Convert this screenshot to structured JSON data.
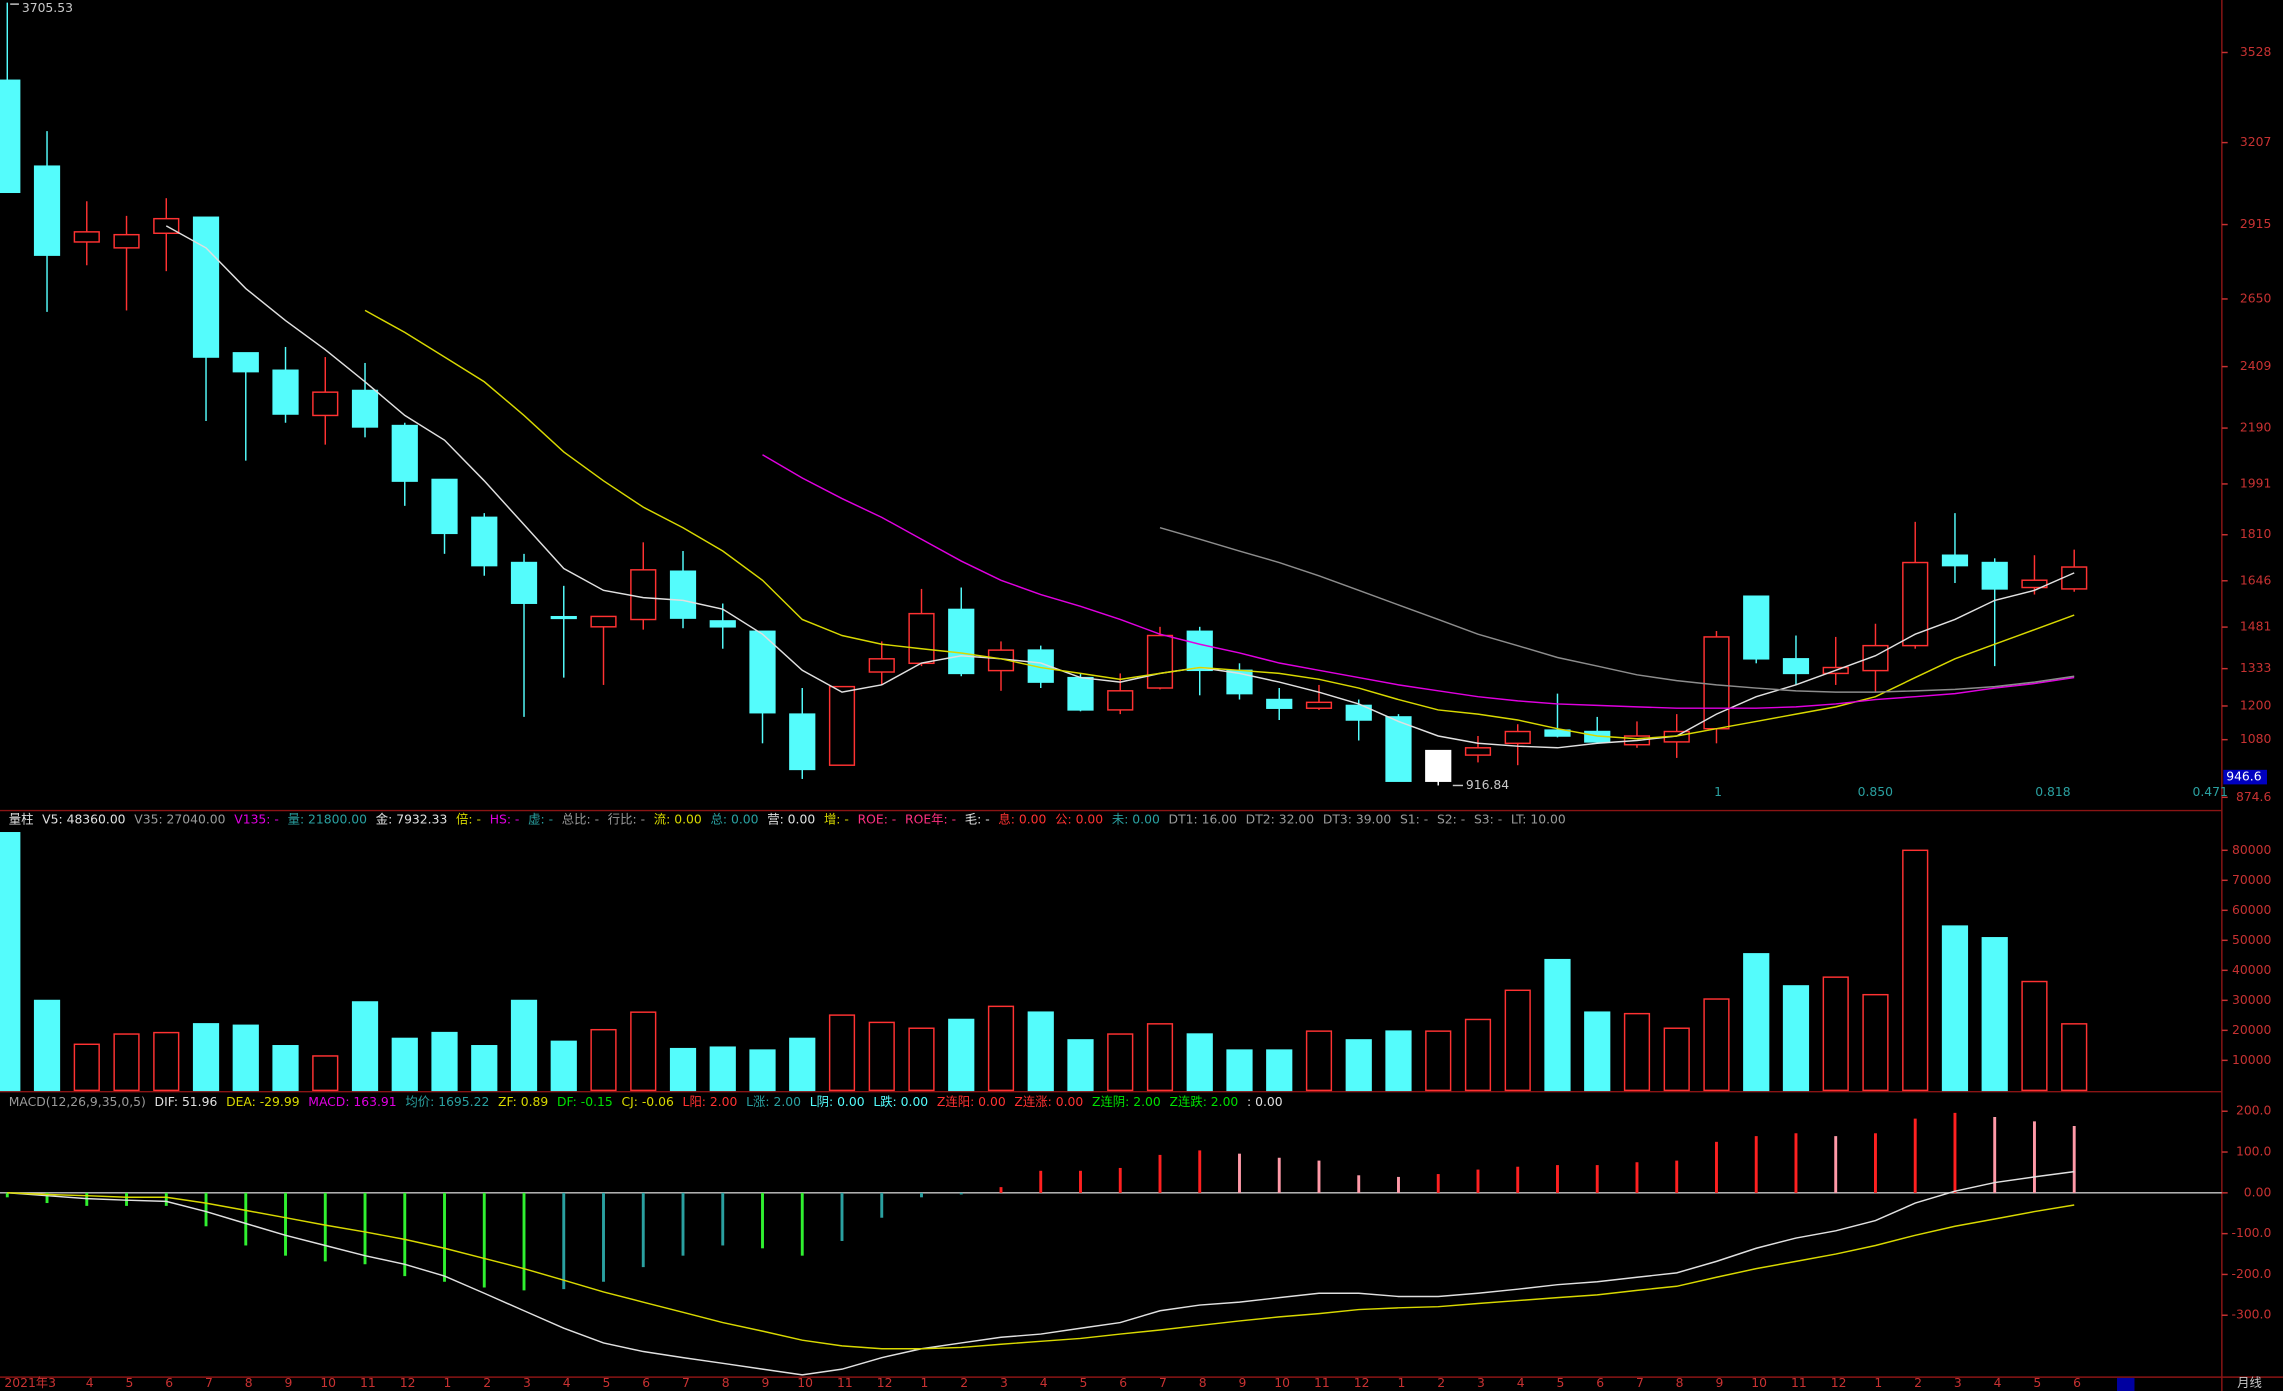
{
  "chart_data": [
    {
      "type": "candlestick",
      "categories": [
        null,
        "2021年3",
        "4",
        "5",
        "6",
        "7",
        "8",
        "9",
        "10",
        "11",
        "12",
        "1",
        "2",
        "3",
        "4",
        "5",
        "6",
        "7",
        "8",
        "9",
        "10",
        "11",
        "12",
        "1",
        "2",
        "3",
        "4",
        "5",
        "6",
        "7",
        "8",
        "9",
        "10",
        "11",
        "12",
        "1",
        "2",
        "3",
        "4",
        "5",
        "6",
        "7",
        "8",
        "9",
        "10",
        "11",
        "12",
        "1",
        "2",
        "3",
        "4",
        "5",
        "6"
      ],
      "open": [
        3429,
        3123,
        2853,
        2832,
        2884,
        2941,
        2458,
        2396,
        2235,
        2324,
        2199,
        2007,
        1872,
        1711,
        1518,
        1482,
        1508,
        1680,
        1503,
        1466,
        1171,
        989,
        1321,
        1352,
        1544,
        1326,
        1399,
        1301,
        1186,
        1264,
        1466,
        1327,
        1223,
        1192,
        1202,
        1161,
        932,
        1025,
        1067,
        1114,
        1109,
        1062,
        1072,
        1119,
        1591,
        1368,
        1316,
        1326,
        1415,
        1737,
        1711,
        1622,
        1617
      ],
      "high": [
        3705.53,
        3248,
        2998,
        2946,
        3009,
        2941,
        2458,
        2479,
        2443,
        2422,
        2209,
        2007,
        1887,
        1742,
        1628,
        1519,
        1783,
        1752,
        1565,
        1466,
        1264,
        1269,
        1430,
        1617,
        1622,
        1430,
        1415,
        1316,
        1316,
        1482,
        1482,
        1352,
        1264,
        1275,
        1223,
        1171,
        1041,
        1093,
        1135,
        1244,
        1161,
        1145,
        1171,
        1467,
        1591,
        1451,
        1446,
        1493,
        1856,
        1887,
        1726,
        1737,
        1757
      ],
      "low": [
        3030,
        2604,
        2770,
        2609,
        2749,
        2215,
        2074,
        2209,
        2131,
        2157,
        1913,
        1742,
        1664,
        1161,
        1301,
        1275,
        1472,
        1477,
        1404,
        1067,
        940,
        989,
        1275,
        1342,
        1306,
        1254,
        1264,
        1181,
        1171,
        1259,
        1238,
        1223,
        1150,
        1186,
        1077,
        932,
        916.84,
        999,
        989,
        1088,
        1067,
        1051,
        1015,
        1067,
        1352,
        1275,
        1275,
        1249,
        1404,
        1638,
        1342,
        1597,
        1607
      ],
      "close": [
        3030,
        2806,
        2889,
        2879,
        2936,
        2443,
        2391,
        2240,
        2318,
        2194,
        2001,
        1815,
        1700,
        1566,
        1512,
        1519,
        1685,
        1513,
        1482,
        1176,
        974,
        1269,
        1368,
        1529,
        1316,
        1399,
        1285,
        1186,
        1254,
        1451,
        1327,
        1244,
        1192,
        1213,
        1150,
        932,
        1041,
        1051,
        1109,
        1093,
        1072,
        1093,
        1109,
        1446,
        1368,
        1316,
        1337,
        1415,
        1711,
        1700,
        1617,
        1648,
        1695
      ],
      "up_color": "#ff3232",
      "down_color": "#54fcfc",
      "highlight_index": 36,
      "highlight_color": "#ffffff",
      "lines": [
        {
          "color": "#e0e0e0",
          "values": [
            null,
            null,
            null,
            null,
            2910,
            2832,
            2687,
            2573,
            2469,
            2355,
            2235,
            2147,
            2002,
            1846,
            1690,
            1612,
            1586,
            1576,
            1545,
            1456,
            1327,
            1249,
            1275,
            1353,
            1379,
            1368,
            1353,
            1301,
            1285,
            1316,
            1337,
            1316,
            1285,
            1249,
            1207,
            1145,
            1093,
            1067,
            1057,
            1051,
            1067,
            1077,
            1093,
            1171,
            1233,
            1275,
            1327,
            1379,
            1456,
            1508,
            1576,
            1612,
            1674
          ]
        },
        {
          "color": "#d8d800",
          "values": [
            null,
            null,
            null,
            null,
            null,
            null,
            null,
            null,
            null,
            2609,
            2531,
            2443,
            2355,
            2235,
            2105,
            2002,
            1908,
            1835,
            1752,
            1648,
            1508,
            1451,
            1420,
            1404,
            1389,
            1368,
            1337,
            1316,
            1295,
            1316,
            1337,
            1327,
            1316,
            1295,
            1264,
            1223,
            1186,
            1171,
            1150,
            1119,
            1093,
            1083,
            1093,
            1119,
            1145,
            1171,
            1197,
            1233,
            1301,
            1368,
            1420,
            1472,
            1524
          ]
        },
        {
          "color": "#e000e0",
          "values": [
            null,
            null,
            null,
            null,
            null,
            null,
            null,
            null,
            null,
            null,
            null,
            null,
            null,
            null,
            null,
            null,
            null,
            null,
            null,
            2095,
            2012,
            1939,
            1872,
            1794,
            1716,
            1648,
            1597,
            1555,
            1508,
            1456,
            1420,
            1389,
            1353,
            1327,
            1301,
            1275,
            1254,
            1233,
            1218,
            1207,
            1202,
            1197,
            1192,
            1192,
            1192,
            1197,
            1207,
            1223,
            1233,
            1244,
            1264,
            1280,
            1301
          ]
        },
        {
          "color": "#8c8c8c",
          "values": [
            null,
            null,
            null,
            null,
            null,
            null,
            null,
            null,
            null,
            null,
            null,
            null,
            null,
            null,
            null,
            null,
            null,
            null,
            null,
            null,
            null,
            null,
            null,
            null,
            null,
            null,
            null,
            null,
            null,
            1835,
            1794,
            1752,
            1711,
            1664,
            1612,
            1560,
            1508,
            1456,
            1415,
            1373,
            1342,
            1311,
            1290,
            1275,
            1264,
            1254,
            1249,
            1249,
            1254,
            1259,
            1269,
            1285,
            1306
          ]
        }
      ],
      "ylim": [
        830,
        3715
      ],
      "yticks": [
        874.6,
        1080,
        1200,
        1333,
        1481,
        1646,
        1810,
        1991,
        2190,
        2409,
        2650,
        2915,
        3207,
        3528
      ],
      "max_marker": 3705.53,
      "min_marker": 916.84,
      "price_tag": 946.6,
      "bottom_markers": [
        "1",
        "0.850",
        "0.818",
        "0.471"
      ],
      "period_label": "月线"
    },
    {
      "type": "bar",
      "header": [
        {
          "text": "量柱",
          "color": "#e0e0e0"
        },
        {
          "text": "V5: 48360.00",
          "color": "#e0e0e0"
        },
        {
          "text": "V35: 27040.00",
          "color": "#9a9a9a"
        },
        {
          "text": "V135: -",
          "color": "#e000e0"
        },
        {
          "text": "量: 21800.00",
          "color": "#2aa0a0"
        },
        {
          "text": "金: 7932.33",
          "color": "#e0e0e0"
        },
        {
          "text": "倍: -",
          "color": "#d8d800"
        },
        {
          "text": "HS: -",
          "color": "#e000e0"
        },
        {
          "text": "虚: -",
          "color": "#2aa0a0"
        },
        {
          "text": "总比: -",
          "color": "#9a9a9a"
        },
        {
          "text": "行比: -",
          "color": "#9a9a9a"
        },
        {
          "text": "流: 0.00",
          "color": "#d8d800"
        },
        {
          "text": "总: 0.00",
          "color": "#2aa0a0"
        },
        {
          "text": "营: 0.00",
          "color": "#e0e0e0"
        },
        {
          "text": "增: -",
          "color": "#d8d800"
        },
        {
          "text": "ROE: -",
          "color": "#ff3080"
        },
        {
          "text": "ROE年: -",
          "color": "#ff3080"
        },
        {
          "text": "毛: -",
          "color": "#e0e0e0"
        },
        {
          "text": "息: 0.00",
          "color": "#ff3232"
        },
        {
          "text": "公: 0.00",
          "color": "#ff3232"
        },
        {
          "text": "未: 0.00",
          "color": "#2aa0a0"
        },
        {
          "text": "DT1: 16.00",
          "color": "#9a9a9a"
        },
        {
          "text": "DT2: 32.00",
          "color": "#9a9a9a"
        },
        {
          "text": "DT3: 39.00",
          "color": "#9a9a9a"
        },
        {
          "text": "S1: -",
          "color": "#9a9a9a"
        },
        {
          "text": "S2: -",
          "color": "#9a9a9a"
        },
        {
          "text": "S3: -",
          "color": "#9a9a9a"
        },
        {
          "text": "LT: 10.00",
          "color": "#9a9a9a"
        }
      ],
      "values": [
        85850,
        29950,
        15360,
        18770,
        19250,
        22170,
        21680,
        14870,
        11470,
        29460,
        17310,
        19250,
        14870,
        29950,
        16330,
        20220,
        26060,
        13900,
        14390,
        13420,
        17310,
        25080,
        22650,
        20710,
        23630,
        28000,
        26060,
        16820,
        18770,
        22170,
        18770,
        13420,
        13420,
        19740,
        16820,
        19740,
        19740,
        23630,
        33350,
        43560,
        26060,
        25570,
        20710,
        30440,
        45500,
        34810,
        37730,
        31890,
        80000,
        54740,
        50850,
        36270,
        22170
      ],
      "ylim": [
        0,
        93000
      ],
      "yticks": [
        10000,
        20000,
        30000,
        40000,
        50000,
        60000,
        70000,
        80000
      ]
    },
    {
      "type": "macd",
      "header": [
        {
          "text": "MACD(12,26,9,35,0,5)",
          "color": "#9a9a9a"
        },
        {
          "text": "DIF: 51.96",
          "color": "#e0e0e0"
        },
        {
          "text": "DEA: -29.99",
          "color": "#d8d800"
        },
        {
          "text": "MACD: 163.91",
          "color": "#e000e0"
        },
        {
          "text": "均价: 1695.22",
          "color": "#2aa0a0"
        },
        {
          "text": "ZF: 0.89",
          "color": "#d8d800"
        },
        {
          "text": "DF: -0.15",
          "color": "#00e000"
        },
        {
          "text": "CJ: -0.06",
          "color": "#d8d800"
        },
        {
          "text": "L阳: 2.00",
          "color": "#ff3232"
        },
        {
          "text": "L涨: 2.00",
          "color": "#2aa0a0"
        },
        {
          "text": "L阴: 0.00",
          "color": "#54fcfc"
        },
        {
          "text": "L跌: 0.00",
          "color": "#54fcfc"
        },
        {
          "text": "Z连阳: 0.00",
          "color": "#ff3232"
        },
        {
          "text": "Z连涨: 0.00",
          "color": "#ff3232"
        },
        {
          "text": "Z连阴: 2.00",
          "color": "#00e000"
        },
        {
          "text": "Z连跌: 2.00",
          "color": "#00e000"
        },
        {
          "text": ": 0.00",
          "color": "#e0e0e0"
        }
      ],
      "values": [
        -11,
        -25,
        -32,
        -32,
        -32,
        -82,
        -129,
        -154,
        -168,
        -175,
        -204,
        -218,
        -232,
        -239,
        -236,
        -218,
        -182,
        -154,
        -129,
        -136,
        -154,
        -118,
        -61,
        -11,
        -4,
        14,
        54,
        54,
        61,
        93,
        104,
        96,
        86,
        79,
        43,
        39,
        46,
        57,
        64,
        68,
        68,
        75,
        79,
        125,
        139,
        146,
        139,
        146,
        182,
        196,
        186,
        175,
        163.91
      ],
      "dif": [
        0,
        -7,
        -14,
        -18,
        -21,
        -46,
        -75,
        -104,
        -129,
        -154,
        -175,
        -204,
        -246,
        -289,
        -332,
        -368,
        -389,
        -404,
        -418,
        -432,
        -446,
        -432,
        -404,
        -382,
        -368,
        -354,
        -346,
        -332,
        -318,
        -289,
        -275,
        -268,
        -257,
        -246,
        -246,
        -254,
        -254,
        -246,
        -236,
        -225,
        -218,
        -207,
        -196,
        -168,
        -136,
        -111,
        -93,
        -68,
        -25,
        4,
        25,
        39,
        51.96
      ],
      "dea": [
        0,
        -4,
        -7,
        -11,
        -11,
        -25,
        -43,
        -61,
        -79,
        -96,
        -114,
        -136,
        -161,
        -186,
        -214,
        -243,
        -268,
        -293,
        -318,
        -339,
        -361,
        -375,
        -382,
        -382,
        -379,
        -371,
        -364,
        -357,
        -346,
        -336,
        -325,
        -314,
        -304,
        -296,
        -286,
        -282,
        -279,
        -271,
        -264,
        -257,
        -250,
        -239,
        -229,
        -207,
        -186,
        -168,
        -150,
        -129,
        -104,
        -82,
        -64,
        -46,
        -29.99
      ],
      "dif_color": "#e0e0e0",
      "dea_color": "#d8d800",
      "bar_colors": {
        "pos_up": "#ff2020",
        "pos_down": "#ff9aa8",
        "neg_down": "#30f030",
        "neg_up": "#2aa0a0"
      },
      "ylim": [
        -450,
        239
      ],
      "yticks": [
        {
          "value": 200,
          "label": "200.0"
        },
        {
          "value": 100,
          "label": "100.0"
        },
        {
          "value": 0,
          "label": "0.00"
        },
        {
          "value": -100,
          "label": "-100.0"
        },
        {
          "value": -200,
          "label": "-200.0"
        },
        {
          "value": -300,
          "label": "-300.0"
        }
      ]
    }
  ]
}
